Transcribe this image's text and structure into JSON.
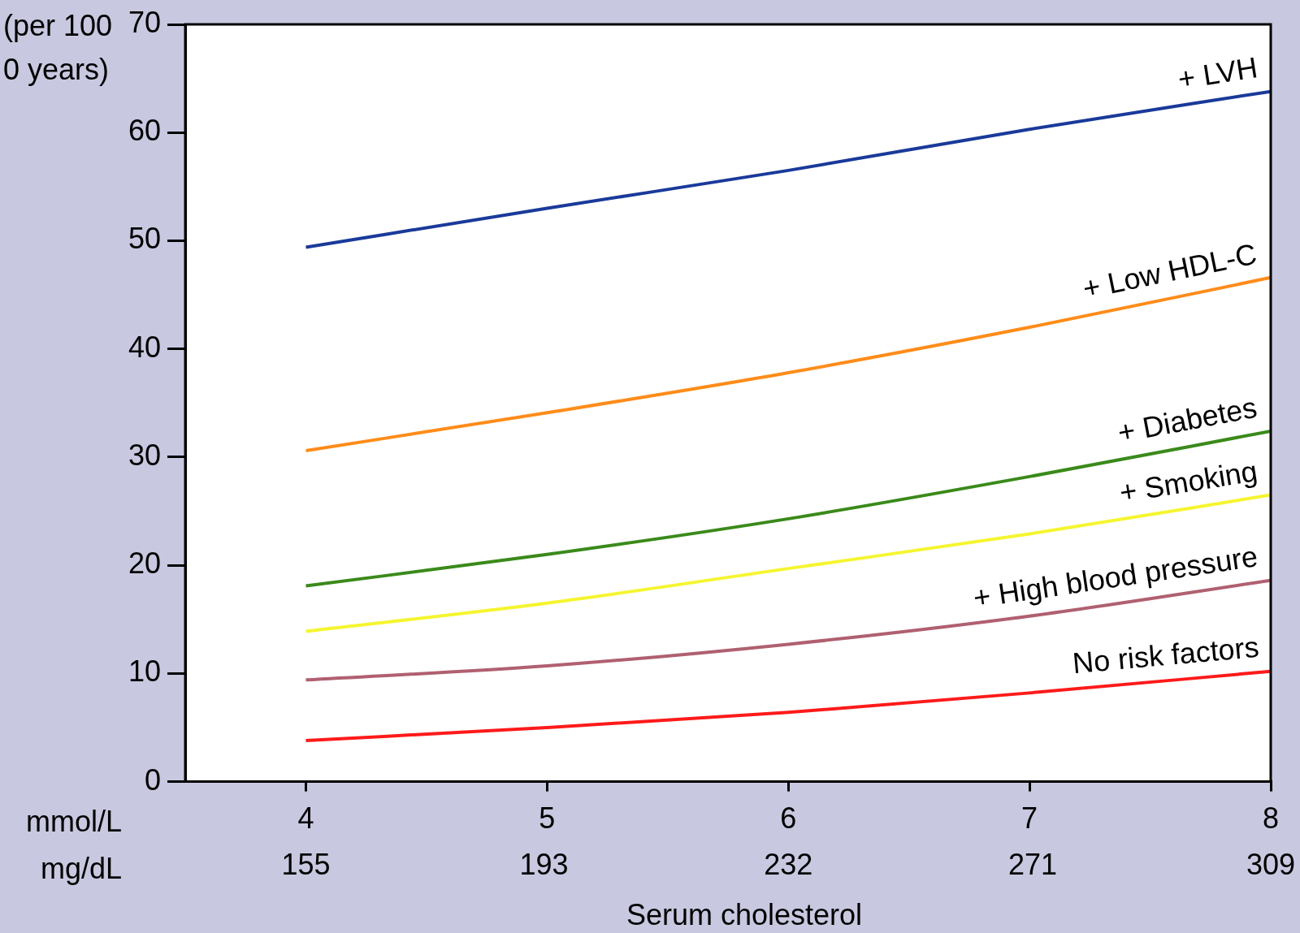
{
  "chart_data": {
    "type": "line",
    "ylabel": "(per 100\n0 years)",
    "xlabel": "Serum cholesterol",
    "x": [
      4,
      5,
      6,
      7,
      8
    ],
    "xlim": [
      3.5,
      8
    ],
    "xticks": [
      4,
      5,
      6,
      7,
      8
    ],
    "x2lim": [
      135.75,
      309
    ],
    "x2ticks": [
      155,
      193,
      232,
      271,
      309
    ],
    "ylim": [
      0,
      70
    ],
    "yticks": [
      0,
      10,
      20,
      30,
      40,
      50,
      60,
      70
    ],
    "grid": false,
    "legend": false,
    "annotations": [
      "mmol/L",
      "mg/dL"
    ],
    "series": [
      {
        "name": "+ LVH",
        "color": "#1a3a9a",
        "values": [
          49.4,
          53,
          56.5,
          60.3,
          63.8
        ]
      },
      {
        "name": "+ Low HDL-C",
        "color": "#ff8c1a",
        "values": [
          30.6,
          34.1,
          37.8,
          42,
          46.6
        ]
      },
      {
        "name": "+ Diabetes",
        "color": "#3a8a1a",
        "values": [
          18.1,
          21,
          24.3,
          28.2,
          32.4
        ]
      },
      {
        "name": "+ Smoking",
        "color": "#f5f530",
        "values": [
          13.9,
          16.5,
          19.7,
          22.9,
          26.5
        ]
      },
      {
        "name": "+ High blood pressure",
        "color": "#b06070",
        "values": [
          9.4,
          10.7,
          12.7,
          15.3,
          18.6
        ]
      },
      {
        "name": "No risk factors",
        "color": "#ff1a1a",
        "values": [
          3.8,
          5,
          6.4,
          8.2,
          10.2
        ]
      }
    ]
  }
}
